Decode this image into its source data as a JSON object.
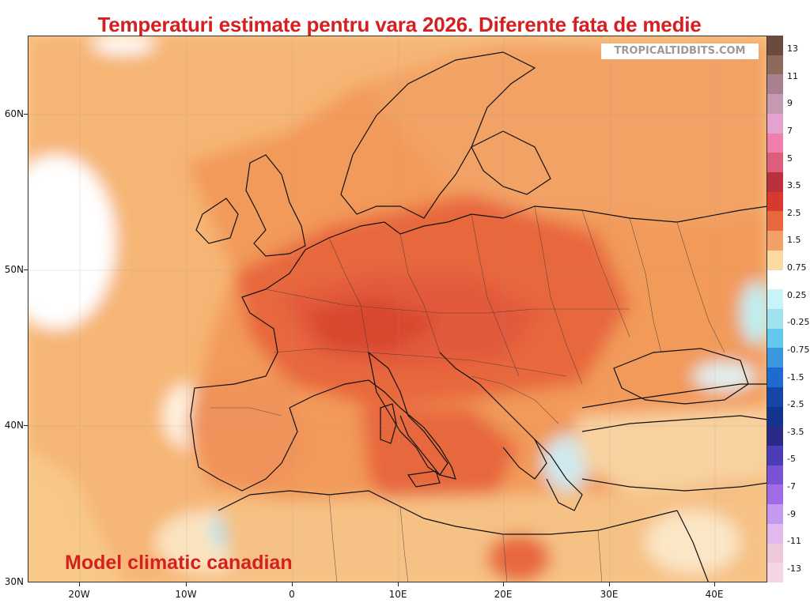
{
  "title": "Temperaturi estimate pentru vara 2026. Diferente fata de medie",
  "watermark": "TROPICALTIDBITS.COM",
  "caption": "Model climatic canadian",
  "latitude_labels": [
    "60N",
    "50N",
    "40N",
    "30N"
  ],
  "longitude_labels": [
    "20W",
    "10W",
    "0",
    "10E",
    "20E",
    "30E",
    "40E"
  ],
  "colorbar": {
    "labels": [
      "13",
      "11",
      "9",
      "7",
      "5",
      "3.5",
      "2.5",
      "1.5",
      "0.75",
      "0.25",
      "-0.25",
      "-0.75",
      "-1.5",
      "-2.5",
      "-3.5",
      "-5",
      "-7",
      "-9",
      "-11",
      "-13"
    ],
    "colors": [
      "#6b4a3f",
      "#8e6a5c",
      "#a9808f",
      "#c598b4",
      "#e6a2cf",
      "#f07fae",
      "#db5e7b",
      "#b8313c",
      "#d8392e",
      "#e8683e",
      "#f3a067",
      "#fbd9a3",
      "#ffffff",
      "#c9f3f7",
      "#9fe3ef",
      "#64c7ef",
      "#3a97e0",
      "#1f6ad0",
      "#1645a8",
      "#12348f",
      "#2a2a88",
      "#4b3db8",
      "#7a52d6",
      "#a26be5",
      "#c49af0",
      "#e3b9f0",
      "#f0c8dc",
      "#f4d4e4"
    ]
  },
  "colors": {
    "title_red": "#d42020",
    "sea_pale_orange": "#f8c888",
    "land_orange": "#f29a5a",
    "hot_red": "#e25a3a",
    "cool_cyan": "#9fe3ef"
  }
}
